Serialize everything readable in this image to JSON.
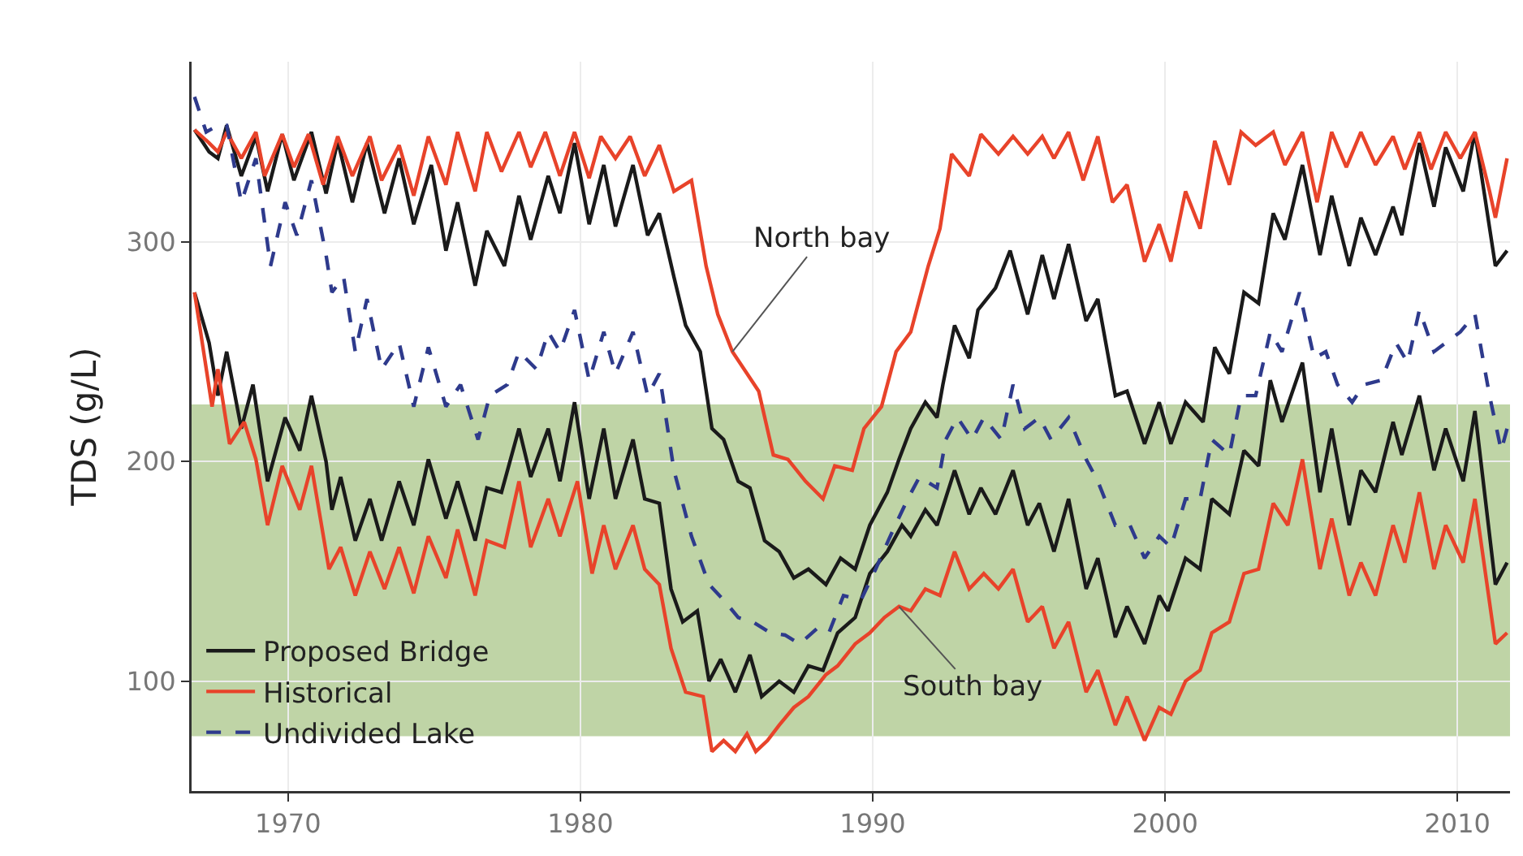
{
  "chart_data": {
    "type": "line",
    "ylabel": "TDS (g/L)",
    "xlim": [
      1966.7,
      2011.8
    ],
    "ylim": [
      50,
      382
    ],
    "xticks": [
      1970,
      1980,
      1990,
      2000,
      2010
    ],
    "yticks": [
      100,
      200,
      300
    ],
    "grid": true,
    "legend": "bottom left",
    "line_style": "solid",
    "bands": [
      {
        "axis": "y",
        "from": 75,
        "to": 226,
        "color": "#bfd4a6"
      }
    ],
    "annotations": [
      {
        "text": "North bay",
        "x": 1985.2,
        "y": 250
      },
      {
        "text": "South bay",
        "x": 1990.9,
        "y": 134
      }
    ],
    "series": [
      {
        "name": "Proposed Bridge",
        "color": "#1a1a1a",
        "x": [
          1966.8,
          1967.3,
          1967.6,
          1967.9,
          1968.4,
          1968.9,
          1969.3,
          1969.8,
          1970.2,
          1970.8,
          1971.3,
          1971.7,
          1972.2,
          1972.7,
          1973.3,
          1973.8,
          1974.3,
          1974.9,
          1975.4,
          1975.8,
          1976.4,
          1976.8,
          1977.4,
          1977.9,
          1978.3,
          1978.9,
          1979.3,
          1979.8,
          1980.3,
          1980.8,
          1981.2,
          1981.8,
          1982.3,
          1982.7,
          1983.2,
          1983.6,
          1984.1,
          1984.5,
          1984.9,
          1985.4,
          1985.8,
          1986.3,
          1986.8,
          1987.3,
          1987.8,
          1988.4,
          1988.9,
          1989.4,
          1989.9,
          1990.5,
          1990.9,
          1991.3,
          1991.8,
          1992.2,
          1992.4,
          1992.8,
          1993.3,
          1993.6,
          1994.2,
          1994.7,
          1995.3,
          1995.8,
          1996.2,
          1996.7,
          1997.3,
          1997.7,
          1998.3,
          1998.7,
          1999.3,
          1999.8,
          2000.2,
          2000.7,
          2001.3,
          2001.7,
          2002.2,
          2002.7,
          2003.2,
          2003.7,
          2004.1,
          2004.7,
          2005.3,
          2005.7,
          2006.3,
          2006.7,
          2007.2,
          2007.8,
          2008.1,
          2008.7,
          2009.2,
          2009.6,
          2010.2,
          2010.6,
          2011.3,
          2011.7
        ],
        "values": [
          351,
          341,
          338,
          353,
          330,
          348,
          323,
          349,
          328,
          350,
          322,
          346,
          318,
          345,
          313,
          338,
          308,
          335,
          296,
          318,
          280,
          305,
          289,
          321,
          301,
          330,
          313,
          345,
          308,
          335,
          307,
          335,
          303,
          313,
          284,
          262,
          250,
          215,
          210,
          191,
          188,
          164,
          159,
          147,
          151,
          144,
          156,
          151,
          171,
          186,
          201,
          215,
          227,
          220,
          235,
          262,
          247,
          269,
          279,
          296,
          267,
          294,
          274,
          299,
          264,
          274,
          230,
          232,
          208,
          227,
          208,
          227,
          218,
          252,
          240,
          277,
          272,
          313,
          301,
          335,
          294,
          321,
          289,
          311,
          294,
          316,
          303,
          345,
          316,
          343,
          323,
          350,
          289,
          296
        ]
      },
      {
        "name": null,
        "color": "#1a1a1a",
        "x": [
          1966.8,
          1967.3,
          1967.6,
          1967.9,
          1968.4,
          1968.8,
          1969.3,
          1969.9,
          1970.4,
          1970.8,
          1971.3,
          1971.5,
          1971.8,
          1972.3,
          1972.8,
          1973.2,
          1973.8,
          1974.3,
          1974.8,
          1975.4,
          1975.8,
          1976.4,
          1976.8,
          1977.3,
          1977.9,
          1978.3,
          1978.9,
          1979.3,
          1979.8,
          1980.3,
          1980.8,
          1981.2,
          1981.8,
          1982.2,
          1982.7,
          1983.1,
          1983.5,
          1984.0,
          1984.4,
          1984.8,
          1985.3,
          1985.8,
          1986.2,
          1986.8,
          1987.3,
          1987.8,
          1988.3,
          1988.8,
          1989.4,
          1989.9,
          1990.5,
          1991.0,
          1991.3,
          1991.8,
          1992.2,
          1992.8,
          1993.3,
          1993.7,
          1994.2,
          1994.8,
          1995.3,
          1995.7,
          1996.2,
          1996.7,
          1997.3,
          1997.7,
          1998.3,
          1998.7,
          1999.3,
          1999.8,
          2000.1,
          2000.7,
          2001.2,
          2001.6,
          2002.2,
          2002.7,
          2003.2,
          2003.6,
          2004.0,
          2004.7,
          2005.3,
          2005.7,
          2006.3,
          2006.7,
          2007.2,
          2007.8,
          2008.1,
          2008.7,
          2009.2,
          2009.6,
          2010.2,
          2010.6,
          2011.3,
          2011.7
        ],
        "values": [
          277,
          254,
          230,
          250,
          215,
          235,
          191,
          220,
          205,
          230,
          200,
          178,
          193,
          164,
          183,
          164,
          191,
          171,
          201,
          174,
          191,
          164,
          188,
          186,
          215,
          193,
          215,
          191,
          227,
          183,
          215,
          183,
          210,
          183,
          181,
          142,
          127,
          132,
          100,
          110,
          95,
          112,
          93,
          100,
          95,
          107,
          105,
          122,
          129,
          149,
          159,
          171,
          166,
          178,
          171,
          196,
          176,
          188,
          176,
          196,
          171,
          181,
          159,
          183,
          142,
          156,
          120,
          134,
          117,
          139,
          132,
          156,
          151,
          183,
          176,
          205,
          198,
          237,
          218,
          245,
          186,
          215,
          171,
          196,
          186,
          218,
          203,
          230,
          196,
          215,
          191,
          223,
          144,
          154
        ]
      },
      {
        "name": "Historical",
        "color": "#e8432a",
        "x": [
          1966.8,
          1967.3,
          1967.6,
          1967.9,
          1968.4,
          1968.9,
          1969.2,
          1969.8,
          1970.2,
          1970.7,
          1971.2,
          1971.7,
          1972.2,
          1972.8,
          1973.2,
          1973.8,
          1974.3,
          1974.8,
          1975.4,
          1975.8,
          1976.4,
          1976.8,
          1977.3,
          1977.9,
          1978.3,
          1978.8,
          1979.3,
          1979.8,
          1980.3,
          1980.7,
          1981.2,
          1981.7,
          1982.2,
          1982.7,
          1983.2,
          1983.8,
          1984.3,
          1984.7,
          1985.2,
          1985.7,
          1986.1,
          1986.6,
          1987.1,
          1987.7,
          1988.3,
          1988.7,
          1989.3,
          1989.7,
          1990.3,
          1990.8,
          1991.3,
          1991.9,
          1992.3,
          1992.7,
          1993.3,
          1993.7,
          1994.3,
          1994.8,
          1995.3,
          1995.8,
          1996.2,
          1996.7,
          1997.2,
          1997.7,
          1998.2,
          1998.7,
          1999.3,
          1999.8,
          2000.2,
          2000.7,
          2001.2,
          2001.7,
          2002.2,
          2002.6,
          2003.1,
          2003.7,
          2004.1,
          2004.7,
          2005.2,
          2005.7,
          2006.2,
          2006.7,
          2007.2,
          2007.8,
          2008.2,
          2008.7,
          2009.1,
          2009.6,
          2010.1,
          2010.6,
          2011.1,
          2011.3,
          2011.7
        ],
        "values": [
          351,
          345,
          341,
          350,
          338,
          350,
          330,
          349,
          334,
          349,
          326,
          348,
          330,
          348,
          328,
          344,
          321,
          348,
          326,
          350,
          323,
          350,
          332,
          350,
          334,
          350,
          330,
          350,
          329,
          348,
          338,
          348,
          330,
          344,
          323,
          328,
          289,
          267,
          250,
          240,
          232,
          203,
          201,
          191,
          183,
          198,
          196,
          215,
          225,
          250,
          259,
          289,
          306,
          340,
          330,
          349,
          340,
          348,
          340,
          348,
          338,
          350,
          328,
          348,
          318,
          326,
          291,
          308,
          291,
          323,
          306,
          346,
          326,
          350,
          344,
          350,
          335,
          350,
          318,
          350,
          334,
          350,
          335,
          348,
          333,
          350,
          333,
          350,
          338,
          350,
          323,
          311,
          338
        ]
      },
      {
        "name": null,
        "color": "#e8432a",
        "x": [
          1966.8,
          1967.4,
          1967.6,
          1968.0,
          1968.5,
          1968.9,
          1969.3,
          1969.8,
          1970.4,
          1970.8,
          1971.4,
          1971.8,
          1972.3,
          1972.8,
          1973.3,
          1973.8,
          1974.3,
          1974.8,
          1975.4,
          1975.8,
          1976.4,
          1976.8,
          1977.4,
          1977.9,
          1978.3,
          1978.9,
          1979.3,
          1979.9,
          1980.4,
          1980.8,
          1981.2,
          1981.8,
          1982.2,
          1982.7,
          1983.1,
          1983.6,
          1984.2,
          1984.5,
          1984.9,
          1985.3,
          1985.7,
          1986.0,
          1986.4,
          1986.8,
          1987.3,
          1987.8,
          1988.4,
          1988.8,
          1989.4,
          1989.9,
          1990.4,
          1990.9,
          1991.3,
          1991.8,
          1992.3,
          1992.8,
          1993.3,
          1993.8,
          1994.3,
          1994.8,
          1995.3,
          1995.8,
          1996.2,
          1996.7,
          1997.3,
          1997.7,
          1998.3,
          1998.7,
          1999.3,
          1999.8,
          2000.2,
          2000.7,
          2001.2,
          2001.6,
          2002.2,
          2002.7,
          2003.2,
          2003.7,
          2004.2,
          2004.7,
          2005.3,
          2005.7,
          2006.3,
          2006.7,
          2007.2,
          2007.8,
          2008.2,
          2008.7,
          2009.2,
          2009.6,
          2010.2,
          2010.6,
          2011.3,
          2011.7
        ],
        "values": [
          277,
          225,
          242,
          208,
          218,
          201,
          171,
          198,
          178,
          198,
          151,
          161,
          139,
          159,
          142,
          161,
          140,
          166,
          147,
          169,
          139,
          164,
          161,
          191,
          161,
          183,
          166,
          191,
          149,
          171,
          151,
          171,
          151,
          144,
          115,
          95,
          93,
          68,
          73,
          68,
          76,
          68,
          73,
          80,
          88,
          93,
          103,
          107,
          117,
          122,
          129,
          134,
          132,
          142,
          139,
          159,
          142,
          149,
          142,
          151,
          127,
          134,
          115,
          127,
          95,
          105,
          80,
          93,
          73,
          88,
          85,
          100,
          105,
          122,
          127,
          149,
          151,
          181,
          171,
          201,
          151,
          174,
          139,
          154,
          139,
          171,
          154,
          186,
          151,
          171,
          154,
          183,
          117,
          122
        ]
      },
      {
        "name": "Undivided Lake",
        "color": "#2e3a8c",
        "line_style": "dashed",
        "x": [
          1966.8,
          1967.2,
          1967.6,
          1967.9,
          1968.4,
          1968.9,
          1969.4,
          1969.9,
          1970.3,
          1970.8,
          1971.3,
          1971.5,
          1971.9,
          1972.3,
          1972.7,
          1973.2,
          1973.8,
          1974.3,
          1974.8,
          1975.4,
          1975.9,
          1976.5,
          1976.9,
          1977.5,
          1977.9,
          1978.5,
          1978.9,
          1979.3,
          1979.8,
          1980.3,
          1980.8,
          1981.2,
          1981.8,
          1982.3,
          1982.7,
          1983.2,
          1983.8,
          1984.4,
          1984.9,
          1985.4,
          1985.9,
          1986.5,
          1987.0,
          1987.5,
          1988.1,
          1988.5,
          1989.0,
          1989.6,
          1990.1,
          1990.7,
          1991.2,
          1991.6,
          1992.2,
          1992.5,
          1992.9,
          1993.4,
          1993.8,
          1994.4,
          1994.8,
          1995.2,
          1995.7,
          1996.1,
          1996.7,
          1997.3,
          1997.7,
          1998.3,
          1998.8,
          1999.3,
          1999.8,
          2000.2,
          2000.7,
          2001.2,
          2001.6,
          2002.2,
          2002.6,
          2003.1,
          2003.6,
          2004.0,
          2004.6,
          2005.1,
          2005.5,
          2005.9,
          2006.4,
          2006.8,
          2007.4,
          2007.9,
          2008.3,
          2008.7,
          2009.2,
          2009.6,
          2010.1,
          2010.6,
          2011.1,
          2011.5,
          2011.7
        ],
        "values": [
          366,
          350,
          353,
          353,
          318,
          338,
          289,
          318,
          303,
          328,
          294,
          277,
          284,
          250,
          274,
          242,
          254,
          225,
          252,
          225,
          235,
          210,
          230,
          235,
          250,
          242,
          259,
          250,
          269,
          237,
          259,
          240,
          259,
          230,
          240,
          196,
          166,
          144,
          137,
          129,
          127,
          122,
          121,
          117,
          124,
          122,
          139,
          137,
          151,
          169,
          183,
          193,
          188,
          210,
          220,
          210,
          220,
          210,
          235,
          215,
          220,
          210,
          220,
          201,
          191,
          171,
          171,
          156,
          166,
          161,
          183,
          183,
          210,
          203,
          230,
          230,
          259,
          250,
          277,
          247,
          250,
          235,
          227,
          235,
          237,
          254,
          245,
          269,
          250,
          254,
          259,
          267,
          230,
          205,
          215
        ]
      }
    ]
  }
}
